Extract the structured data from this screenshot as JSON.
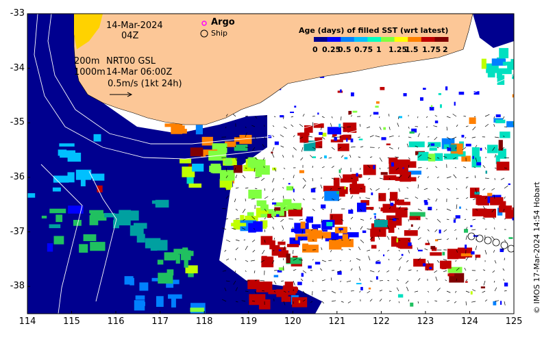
{
  "map": {
    "lon_range": [
      114,
      125
    ],
    "lat_range": [
      -38.5,
      -33
    ],
    "x_ticks": [
      "114",
      "115",
      "116",
      "117",
      "118",
      "119",
      "120",
      "121",
      "122",
      "123",
      "124",
      "125"
    ],
    "y_ticks": [
      "-33",
      "-34",
      "-35",
      "-36",
      "-37",
      "-38"
    ],
    "colors": {
      "land": "#fcc797",
      "ocean_fresh": "#00008f",
      "no_data": "#ffffff"
    }
  },
  "annotations": {
    "date": "14-Mar-2024",
    "hour": "04Z",
    "depth_200": "200m",
    "depth_1000": "1000m",
    "product": "NRT00 GSL",
    "valid_time": "14-Mar 06:00Z",
    "scale_arrow": "0.5m/s (1kt 24h)"
  },
  "legend": {
    "argo_label": "Argo",
    "ship_label": "Ship",
    "argo_color": "#ff00ff"
  },
  "colorbar": {
    "title": "Age (days) of filled SST (wrt latest)",
    "ticks": [
      "0",
      "0.25",
      "0.5",
      "0.75",
      "1",
      "1.25",
      "1.5",
      "1.75",
      "2"
    ],
    "colors": [
      "#00008f",
      "#0000ff",
      "#0080ff",
      "#00c0ff",
      "#00ffc0",
      "#80ff40",
      "#ffff00",
      "#ff8000",
      "#c00000",
      "#800000"
    ]
  },
  "credit": "© IMOS 17-Mar-2024 14:54 Hobart"
}
